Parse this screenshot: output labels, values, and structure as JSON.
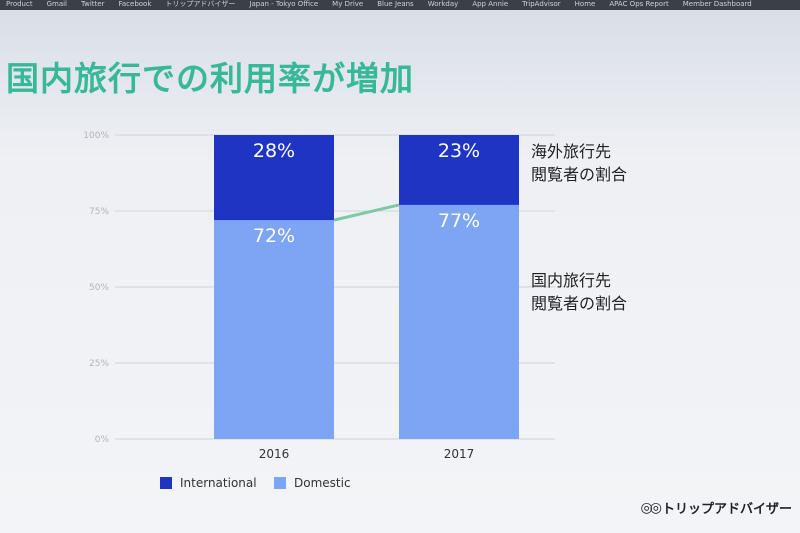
{
  "bookmarks": [
    "Product",
    "Gmail",
    "Twitter",
    "Facebook",
    "トリップアドバイザー",
    "Japan - Tokyo Office",
    "My Drive",
    "Blue Jeans",
    "Workday",
    "App Annie",
    "TripAdvisor",
    "Home",
    "APAC Ops Report",
    "Member Dashboard"
  ],
  "title": "国内旅行での利用率が増加",
  "side_labels": {
    "international": [
      "海外旅行先",
      "閲覧者の割合"
    ],
    "domestic": [
      "国内旅行先",
      "閲覧者の割合"
    ]
  },
  "logo": {
    "icon": "owl-eyes-icon",
    "text": "トリップアドバイザー"
  },
  "colors": {
    "international": "#1e35c4",
    "domestic": "#7ea4f4",
    "trend": "#7cc9a4"
  },
  "chart_data": {
    "type": "bar",
    "stacked": true,
    "categories": [
      "2016",
      "2017"
    ],
    "series": [
      {
        "name": "Domestic",
        "values": [
          72,
          77
        ],
        "labels": [
          "72%",
          "77%"
        ]
      },
      {
        "name": "International",
        "values": [
          28,
          23
        ],
        "labels": [
          "28%",
          "23%"
        ]
      }
    ],
    "ylim": [
      0,
      100
    ],
    "yticks": [
      "0%",
      "25%",
      "50%",
      "75%",
      "100%"
    ],
    "grid": true,
    "legend": "bottom-left"
  }
}
